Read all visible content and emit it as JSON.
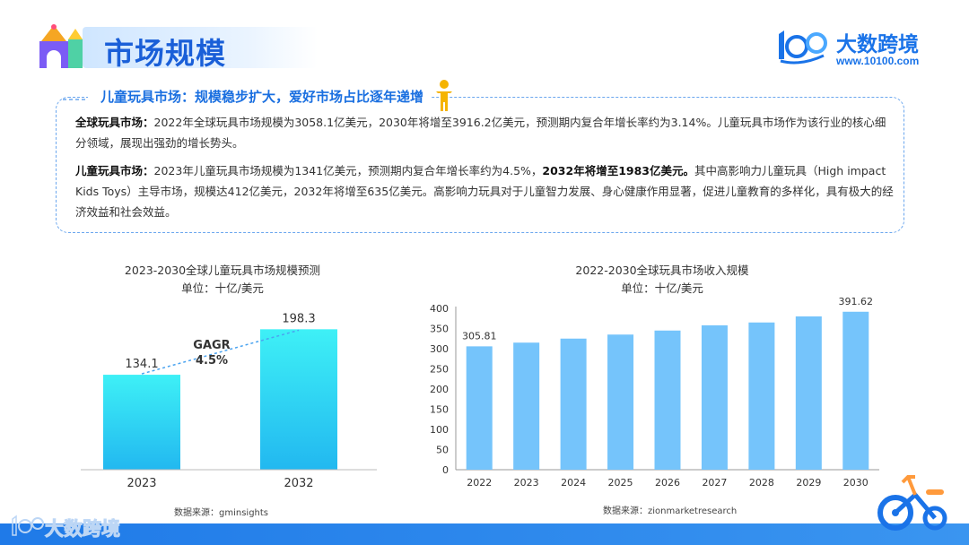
{
  "header": {
    "title": "市场规模",
    "brand_name": "大数跨境",
    "brand_url": "www.10100.com",
    "brand_mark": "1OO"
  },
  "summary": {
    "heading": "儿童玩具市场：规模稳步扩大，爱好市场占比逐年递增",
    "p1_label": "全球玩具市场：",
    "p1_text": "2022年全球玩具市场规模为3058.1亿美元，2030年将增至3916.2亿美元，预测期内复合年增长率约为3.14%。儿童玩具市场作为该行业的核心细分领域，展现出强劲的增长势头。",
    "p2_label": "儿童玩具市场：",
    "p2_text_a": "2023年儿童玩具市场规模为1341亿美元，预测期内复合年增长率约为4.5%，",
    "p2_bold": "2032年将增至1983亿美元。",
    "p2_text_b": "其中高影响力儿童玩具（High impact Kids Toys）主导市场，规模达412亿美元，2032年将增至635亿美元。高影响力玩具对于儿童智力发展、身心健康作用显著，促进儿童教育的多样化，具有极大的经济效益和社会效益。"
  },
  "chart_data": [
    {
      "type": "bar",
      "title": "2023-2030全球儿童玩具市场规模预测",
      "subtitle": "单位：十亿/美元",
      "categories": [
        "2023",
        "2032"
      ],
      "values": [
        134.1,
        198.3
      ],
      "value_labels": [
        "134.1",
        "198.3"
      ],
      "annotation": [
        "GAGR",
        "4.5%"
      ],
      "source": "数据来源：gminsights",
      "bar_color_top": "#3ef0f6",
      "bar_color_bottom": "#22b8f0"
    },
    {
      "type": "bar",
      "title": "2022-2030全球玩具市场收入规模",
      "subtitle": "单位：十亿/美元",
      "categories": [
        "2022",
        "2023",
        "2024",
        "2025",
        "2026",
        "2027",
        "2028",
        "2029",
        "2030"
      ],
      "values": [
        305.81,
        315,
        325,
        335,
        345,
        358,
        365,
        380,
        391.62
      ],
      "value_labels": {
        "0": "305.81",
        "8": "391.62"
      },
      "yticks": [
        0,
        50,
        100,
        150,
        200,
        250,
        300,
        350,
        400
      ],
      "ylim": [
        0,
        400
      ],
      "source": "数据来源：zionmarketresearch",
      "bar_color": "#75c4fb"
    }
  ],
  "footer": {
    "brand_name": "大数跨境",
    "brand_mark": "1OO"
  },
  "colors": {
    "accent": "#1a6fe0",
    "footer": "#2a86ec"
  }
}
